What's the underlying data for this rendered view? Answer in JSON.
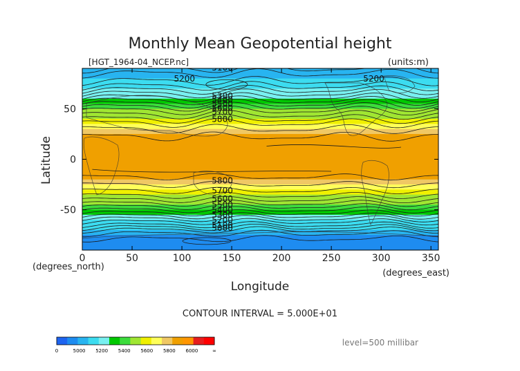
{
  "chart_data": {
    "type": "heatmap",
    "title": "Monthly Mean Geopotential height",
    "subtitle_left": "[HGT_1964-04_NCEP.nc]",
    "subtitle_right": "(units:m)",
    "xlabel": "Longitude",
    "ylabel": "Latitude",
    "x_unit_label": "(degrees_east)",
    "y_unit_label": "(degrees_north)",
    "xlim": [
      0,
      357.5
    ],
    "ylim": [
      -90,
      90
    ],
    "x_ticks": [
      0,
      50,
      100,
      150,
      200,
      250,
      300,
      350
    ],
    "y_ticks": [
      50,
      0,
      -50
    ],
    "contour_interval_text": "CONTOUR INTERVAL = 5.000E+01",
    "level_text": "level=500 millibar",
    "contour_labels": [
      "5100",
      "5200",
      "5200",
      "5300",
      "5400",
      "5500",
      "5600",
      "5700",
      "5800",
      "5800",
      "5700",
      "5600",
      "5500",
      "5400",
      "5300",
      "5200",
      "5100",
      "5000"
    ],
    "colorbar": {
      "tick_labels": [
        "0",
        "5000",
        "5200",
        "5400",
        "5600",
        "5800",
        "6000",
        "∞"
      ],
      "colors": [
        "#1e64f0",
        "#1e8cf0",
        "#28b4f0",
        "#3cdcf0",
        "#78f0f0",
        "#00c800",
        "#3cdc3c",
        "#a0e632",
        "#f0f000",
        "#ffff5a",
        "#f0c864",
        "#f0a000",
        "#ff9600",
        "#e61e1e",
        "#ff0000"
      ]
    },
    "series": [
      {
        "latitude": [
          90,
          85,
          80,
          75,
          70,
          65,
          60,
          55,
          50,
          45,
          40,
          35,
          30,
          25,
          20,
          15,
          10,
          5,
          0,
          -5,
          -10,
          -15,
          -20,
          -25,
          -30,
          -35,
          -40,
          -45,
          -50,
          -55,
          -60,
          -65,
          -70,
          -75,
          -80,
          -85,
          -90
        ],
        "zonal_mean_height_m": [
          5100,
          5150,
          5180,
          5220,
          5280,
          5350,
          5420,
          5500,
          5580,
          5640,
          5700,
          5760,
          5800,
          5840,
          5860,
          5870,
          5870,
          5870,
          5870,
          5870,
          5870,
          5860,
          5840,
          5800,
          5760,
          5710,
          5650,
          5580,
          5500,
          5420,
          5330,
          5250,
          5150,
          5080,
          5040,
          5030,
          5030
        ]
      }
    ]
  }
}
